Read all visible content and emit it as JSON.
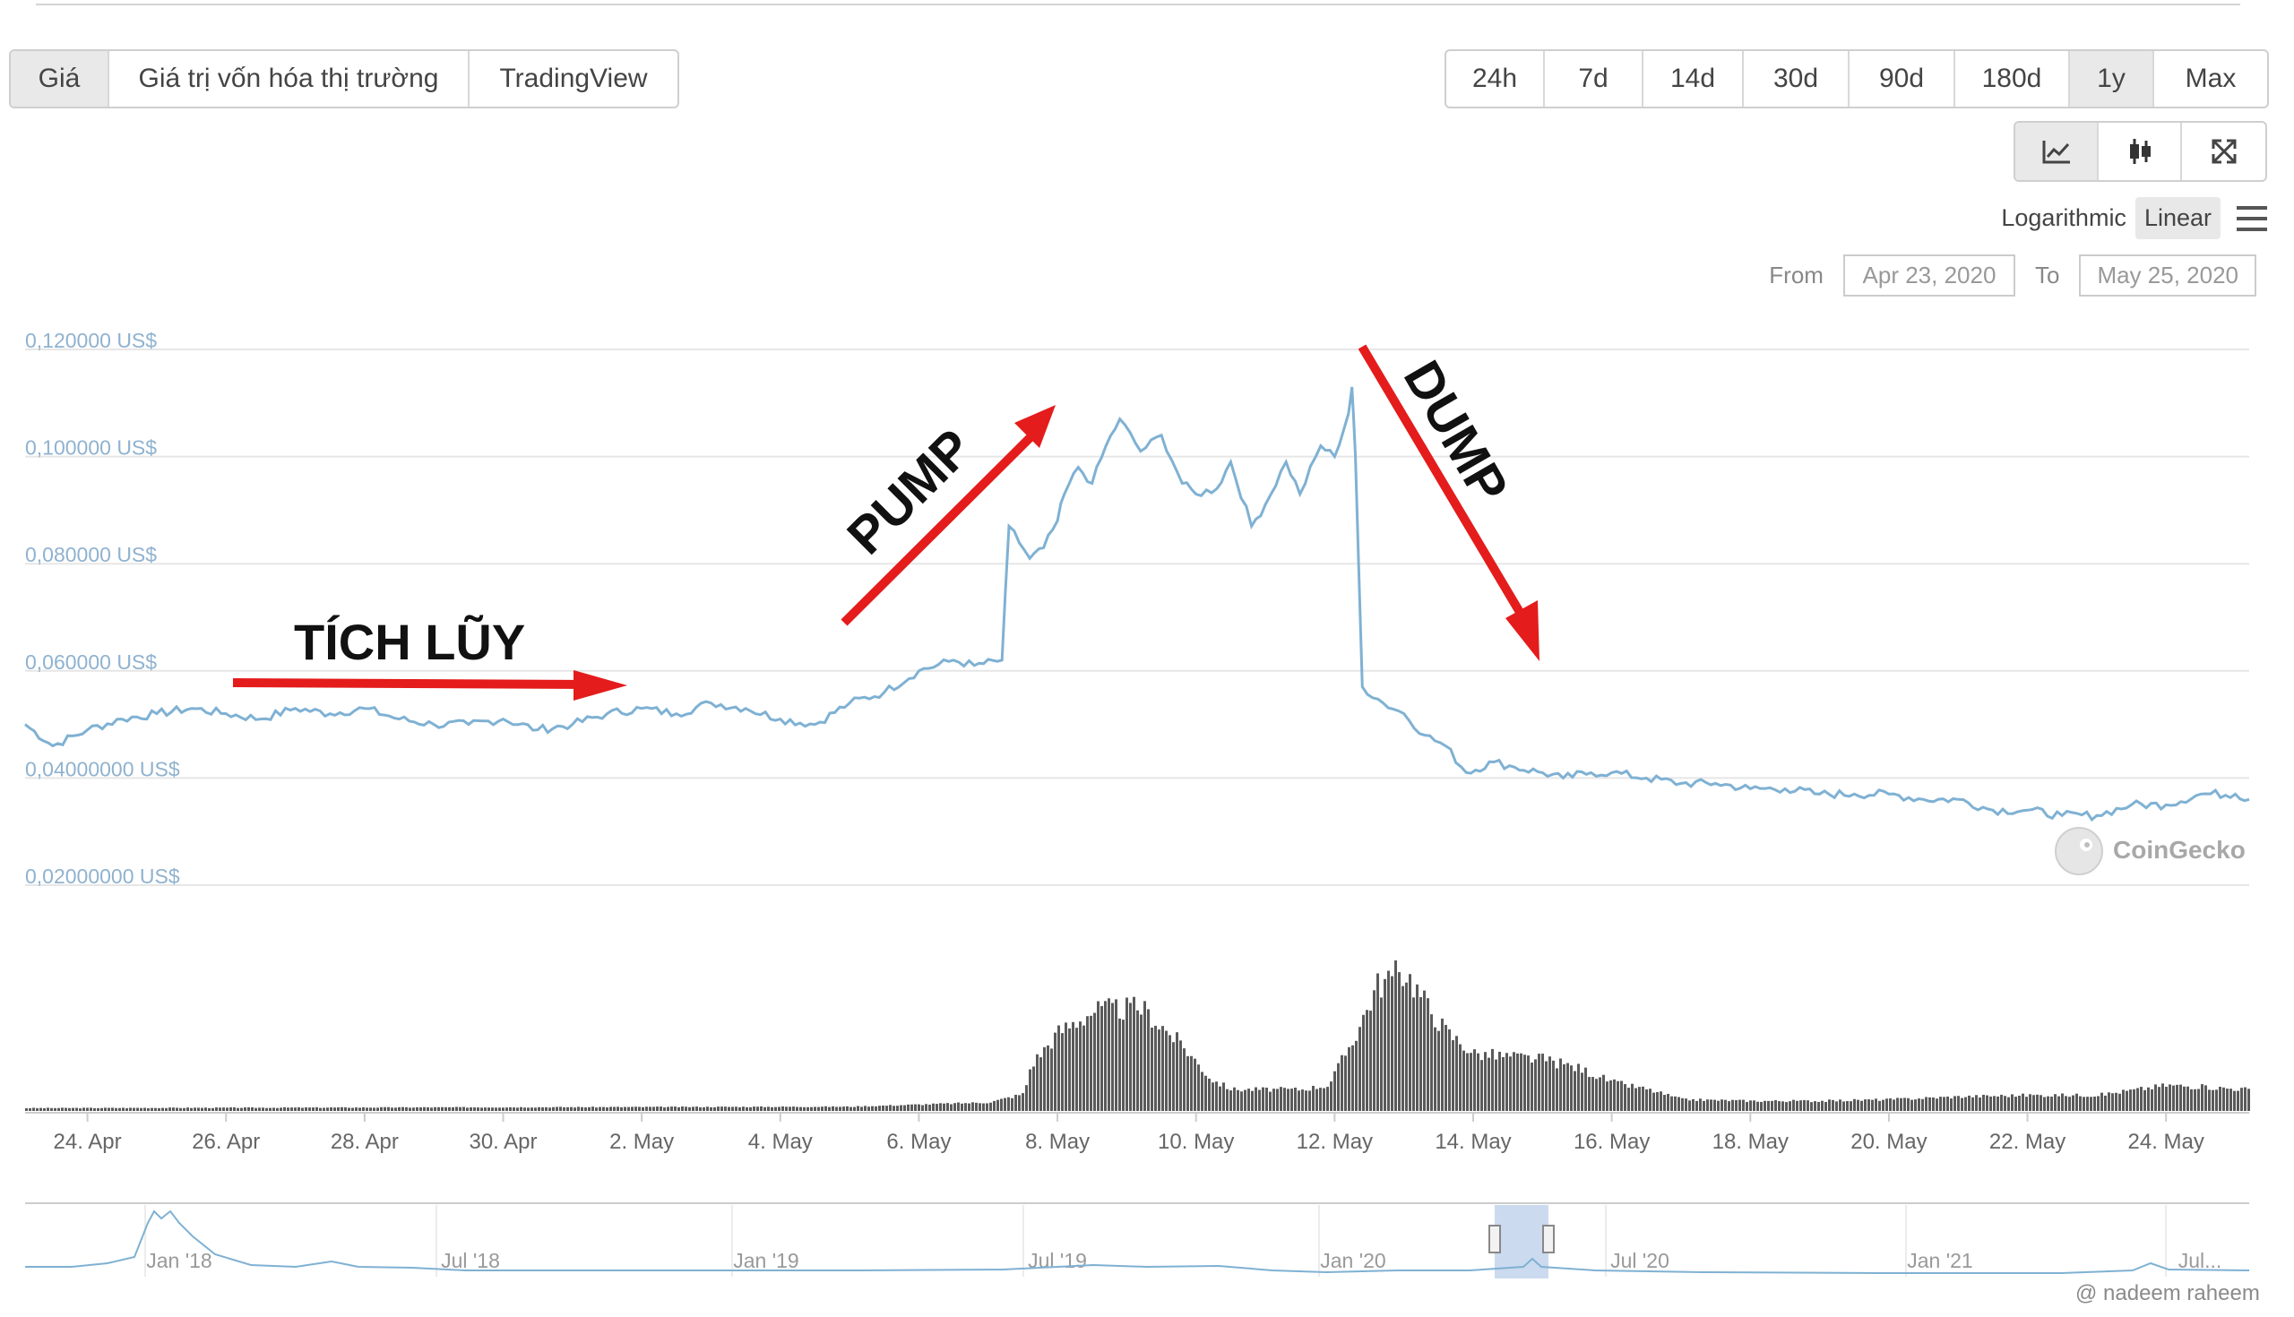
{
  "tabs": {
    "chart_types": [
      "Giá",
      "Giá trị vốn hóa thị trường",
      "TradingView"
    ],
    "active_chart_type": "Giá",
    "ranges": [
      "24h",
      "7d",
      "14d",
      "30d",
      "90d",
      "180d",
      "1y",
      "Max"
    ],
    "active_range": "1y"
  },
  "view_icons": [
    "line-chart-icon",
    "candlestick-icon",
    "fullscreen-icon"
  ],
  "scale": {
    "logarithmic": "Logarithmic",
    "linear": "Linear",
    "active": "Linear"
  },
  "date_range": {
    "from_label": "From",
    "from": "Apr 23, 2020",
    "to_label": "To",
    "to": "May 25, 2020"
  },
  "brand": "CoinGecko",
  "watermark": "@ nadeem raheem",
  "annotations": {
    "accumulation": "TÍCH LŨY",
    "pump": "PUMP",
    "dump": "DUMP"
  },
  "colors": {
    "price_line": "#7fb1d3",
    "axis_label": "#8fb2cf",
    "arrow": "#e41c1c",
    "volume": "#5a5a5a",
    "navigator_fill": "#b9cde8"
  },
  "chart_data": {
    "type": "line",
    "ylim": [
      0.02,
      0.12
    ],
    "y_ticks": [
      {
        "value": 0.12,
        "label": "0,120000 US$"
      },
      {
        "value": 0.1,
        "label": "0,100000 US$"
      },
      {
        "value": 0.08,
        "label": "0,080000 US$"
      },
      {
        "value": 0.06,
        "label": "0,060000 US$"
      },
      {
        "value": 0.04,
        "label": "0,04000000 US$"
      },
      {
        "value": 0.02,
        "label": "0,02000000 US$"
      }
    ],
    "x_ticks": [
      {
        "day": 1,
        "label": "24. Apr"
      },
      {
        "day": 3,
        "label": "26. Apr"
      },
      {
        "day": 5,
        "label": "28. Apr"
      },
      {
        "day": 7,
        "label": "30. Apr"
      },
      {
        "day": 9,
        "label": "2. May"
      },
      {
        "day": 11,
        "label": "4. May"
      },
      {
        "day": 13,
        "label": "6. May"
      },
      {
        "day": 15,
        "label": "8. May"
      },
      {
        "day": 17,
        "label": "10. May"
      },
      {
        "day": 19,
        "label": "12. May"
      },
      {
        "day": 21,
        "label": "14. May"
      },
      {
        "day": 23,
        "label": "16. May"
      },
      {
        "day": 25,
        "label": "18. May"
      },
      {
        "day": 27,
        "label": "20. May"
      },
      {
        "day": 29,
        "label": "22. May"
      },
      {
        "day": 31,
        "label": "24. May"
      }
    ],
    "x_range_days": [
      0.1,
      32.2
    ],
    "series": [
      {
        "x": [
          0.1,
          0.5,
          1.0,
          1.5,
          2.0,
          2.5,
          3.0,
          3.5,
          4.0,
          4.5,
          5.0,
          5.5,
          6.0,
          6.5,
          7.0,
          7.5,
          8.0,
          8.5,
          9.0,
          9.5,
          10.0,
          10.5,
          11.0,
          11.5,
          12.0,
          12.5,
          13.0,
          13.5,
          13.8,
          14.2,
          14.3,
          14.6,
          14.8,
          15.0,
          15.1,
          15.3,
          15.5,
          15.7,
          15.9,
          16.2,
          16.5,
          16.8,
          17.0,
          17.3,
          17.5,
          17.8,
          18.0,
          18.3,
          18.5,
          18.8,
          19.0,
          19.2,
          19.25,
          19.3,
          19.4,
          19.7,
          20.0,
          20.3,
          20.6,
          20.9,
          21.3,
          21.6,
          22.0,
          22.3,
          22.7,
          23.0,
          23.5,
          24.0,
          24.5,
          25.0,
          25.5,
          26.0,
          26.5,
          27.0,
          27.5,
          28.0,
          28.5,
          29.0,
          29.5,
          30.0,
          30.5,
          31.0,
          31.5,
          32.0,
          32.2
        ],
        "y": [
          0.05,
          0.046,
          0.049,
          0.051,
          0.052,
          0.053,
          0.052,
          0.051,
          0.053,
          0.052,
          0.053,
          0.051,
          0.05,
          0.05,
          0.051,
          0.049,
          0.05,
          0.052,
          0.053,
          0.052,
          0.054,
          0.053,
          0.051,
          0.05,
          0.054,
          0.056,
          0.06,
          0.062,
          0.061,
          0.062,
          0.087,
          0.081,
          0.083,
          0.088,
          0.093,
          0.098,
          0.095,
          0.102,
          0.107,
          0.101,
          0.104,
          0.095,
          0.093,
          0.094,
          0.099,
          0.087,
          0.091,
          0.099,
          0.093,
          0.102,
          0.1,
          0.108,
          0.113,
          0.1,
          0.057,
          0.054,
          0.052,
          0.048,
          0.046,
          0.041,
          0.043,
          0.042,
          0.041,
          0.04,
          0.041,
          0.041,
          0.04,
          0.039,
          0.039,
          0.038,
          0.038,
          0.037,
          0.037,
          0.037,
          0.036,
          0.036,
          0.034,
          0.034,
          0.033,
          0.033,
          0.035,
          0.035,
          0.037,
          0.037,
          0.036
        ]
      }
    ],
    "volume": {
      "days": [
        0.1,
        12.0,
        14.0,
        14.5,
        14.6,
        15.0,
        15.5,
        16.2,
        16.8,
        17.2,
        17.5,
        18.0,
        18.5,
        18.9,
        19.3,
        19.6,
        20.0,
        20.3,
        20.6,
        21.0,
        21.5,
        22.0,
        22.5,
        23.0,
        23.5,
        24.0,
        25.0,
        26.0,
        27.0,
        28.0,
        29.0,
        30.0,
        31.0,
        32.2
      ],
      "relative": [
        0.02,
        0.03,
        0.06,
        0.12,
        0.32,
        0.55,
        0.7,
        0.72,
        0.45,
        0.22,
        0.15,
        0.15,
        0.15,
        0.18,
        0.55,
        0.88,
        0.98,
        0.75,
        0.55,
        0.4,
        0.38,
        0.36,
        0.3,
        0.2,
        0.15,
        0.08,
        0.07,
        0.07,
        0.08,
        0.1,
        0.11,
        0.11,
        0.18,
        0.15
      ]
    },
    "navigator": {
      "labels": [
        "Jan '18",
        "Jul '18",
        "Jan '19",
        "Jul '19",
        "Jan '20",
        "Jul '20",
        "Jan '21",
        "Jul..."
      ]
    }
  }
}
